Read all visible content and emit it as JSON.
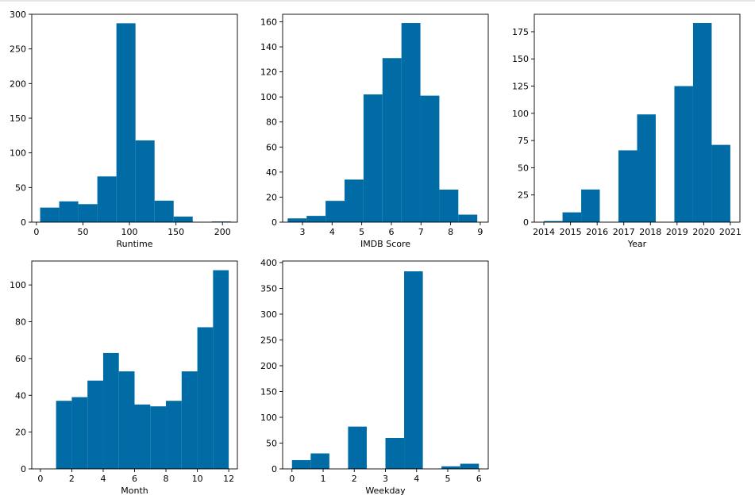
{
  "figure": {
    "bar_color": "#006BA4",
    "axes_color": "#000000",
    "background": "#ffffff"
  },
  "chart_data": [
    {
      "id": "runtime",
      "type": "bar",
      "xlabel": "Runtime",
      "ylabel": "",
      "xlim": [
        -5,
        216
      ],
      "ylim": [
        0,
        300
      ],
      "xticks": [
        0,
        50,
        100,
        150,
        200
      ],
      "yticks": [
        0,
        50,
        100,
        150,
        200,
        250,
        300
      ],
      "bins": [
        {
          "x0": 4,
          "x1": 24.5,
          "count": 21
        },
        {
          "x0": 24.5,
          "x1": 45,
          "count": 30
        },
        {
          "x0": 45,
          "x1": 65.5,
          "count": 26
        },
        {
          "x0": 65.5,
          "x1": 86,
          "count": 66
        },
        {
          "x0": 86,
          "x1": 106.5,
          "count": 287
        },
        {
          "x0": 106.5,
          "x1": 127,
          "count": 118
        },
        {
          "x0": 127,
          "x1": 147.5,
          "count": 31
        },
        {
          "x0": 147.5,
          "x1": 168,
          "count": 8
        },
        {
          "x0": 168,
          "x1": 188.5,
          "count": 0
        },
        {
          "x0": 188.5,
          "x1": 209,
          "count": 1
        }
      ]
    },
    {
      "id": "imdb",
      "type": "bar",
      "xlabel": "IMDB Score",
      "ylabel": "",
      "xlim": [
        2.33,
        9.27
      ],
      "ylim": [
        0,
        166
      ],
      "xticks": [
        3,
        4,
        5,
        6,
        7,
        8,
        9
      ],
      "yticks": [
        0,
        20,
        40,
        60,
        80,
        100,
        120,
        140,
        160
      ],
      "bins": [
        {
          "x0": 2.5,
          "x1": 3.14,
          "count": 3
        },
        {
          "x0": 3.14,
          "x1": 3.78,
          "count": 5
        },
        {
          "x0": 3.78,
          "x1": 4.42,
          "count": 17
        },
        {
          "x0": 4.42,
          "x1": 5.06,
          "count": 34
        },
        {
          "x0": 5.06,
          "x1": 5.7,
          "count": 102
        },
        {
          "x0": 5.7,
          "x1": 6.34,
          "count": 131
        },
        {
          "x0": 6.34,
          "x1": 6.98,
          "count": 159
        },
        {
          "x0": 6.98,
          "x1": 7.62,
          "count": 101
        },
        {
          "x0": 7.62,
          "x1": 8.26,
          "count": 26
        },
        {
          "x0": 8.26,
          "x1": 8.9,
          "count": 6
        }
      ]
    },
    {
      "id": "year",
      "type": "bar",
      "xlabel": "Year",
      "ylabel": "",
      "xlim": [
        2013.64,
        2021.36
      ],
      "ylim": [
        0,
        191
      ],
      "xticks": [
        2014,
        2015,
        2016,
        2017,
        2018,
        2019,
        2020,
        2021
      ],
      "yticks": [
        0,
        25,
        50,
        75,
        100,
        125,
        150,
        175
      ],
      "bins": [
        {
          "x0": 2014,
          "x1": 2014.7,
          "count": 1
        },
        {
          "x0": 2014.7,
          "x1": 2015.4,
          "count": 9
        },
        {
          "x0": 2015.4,
          "x1": 2016.1,
          "count": 30
        },
        {
          "x0": 2016.1,
          "x1": 2016.8,
          "count": 0
        },
        {
          "x0": 2016.8,
          "x1": 2017.5,
          "count": 66
        },
        {
          "x0": 2017.5,
          "x1": 2018.2,
          "count": 99
        },
        {
          "x0": 2018.2,
          "x1": 2018.9,
          "count": 0
        },
        {
          "x0": 2018.9,
          "x1": 2019.6,
          "count": 125
        },
        {
          "x0": 2019.6,
          "x1": 2020.3,
          "count": 183
        },
        {
          "x0": 2020.3,
          "x1": 2021,
          "count": 71
        }
      ]
    },
    {
      "id": "month",
      "type": "bar",
      "xlabel": "Month",
      "ylabel": "",
      "xlim": [
        -0.55,
        12.55
      ],
      "ylim": [
        0,
        113
      ],
      "xticks": [
        0,
        2,
        4,
        6,
        8,
        10,
        12
      ],
      "yticks": [
        0,
        20,
        40,
        60,
        80,
        100
      ],
      "bins": [
        {
          "x0": 1,
          "x1": 2,
          "count": 37
        },
        {
          "x0": 2,
          "x1": 3,
          "count": 39
        },
        {
          "x0": 3,
          "x1": 4,
          "count": 48
        },
        {
          "x0": 4,
          "x1": 5,
          "count": 63
        },
        {
          "x0": 5,
          "x1": 6,
          "count": 53
        },
        {
          "x0": 6,
          "x1": 7,
          "count": 35
        },
        {
          "x0": 7,
          "x1": 8,
          "count": 34
        },
        {
          "x0": 8,
          "x1": 9,
          "count": 37
        },
        {
          "x0": 9,
          "x1": 10,
          "count": 53
        },
        {
          "x0": 10,
          "x1": 11,
          "count": 77
        },
        {
          "x0": 11,
          "x1": 12,
          "count": 108
        }
      ]
    },
    {
      "id": "weekday",
      "type": "bar",
      "xlabel": "Weekday",
      "ylabel": "",
      "xlim": [
        -0.3,
        6.3
      ],
      "ylim": [
        0,
        403
      ],
      "xticks": [
        0,
        1,
        2,
        3,
        4,
        5,
        6
      ],
      "yticks": [
        0,
        50,
        100,
        150,
        200,
        250,
        300,
        350,
        400
      ],
      "bins": [
        {
          "x0": 0,
          "x1": 0.6,
          "count": 17
        },
        {
          "x0": 0.6,
          "x1": 1.2,
          "count": 30
        },
        {
          "x0": 1.2,
          "x1": 1.8,
          "count": 0
        },
        {
          "x0": 1.8,
          "x1": 2.4,
          "count": 82
        },
        {
          "x0": 2.4,
          "x1": 3.0,
          "count": 0
        },
        {
          "x0": 3.0,
          "x1": 3.6,
          "count": 60
        },
        {
          "x0": 3.6,
          "x1": 4.2,
          "count": 383
        },
        {
          "x0": 4.2,
          "x1": 4.8,
          "count": 0
        },
        {
          "x0": 4.8,
          "x1": 5.4,
          "count": 5
        },
        {
          "x0": 5.4,
          "x1": 6.0,
          "count": 10
        }
      ]
    }
  ]
}
